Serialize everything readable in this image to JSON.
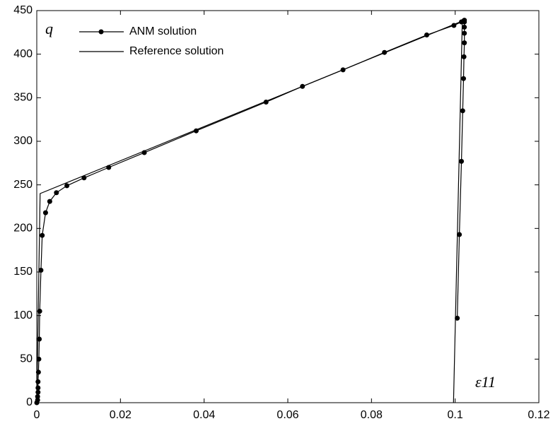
{
  "chart_data": {
    "type": "line",
    "ylabel": "q",
    "xlabel": "ε11",
    "xlim": [
      0,
      0.12
    ],
    "ylim": [
      0,
      450
    ],
    "xticks": [
      0,
      0.02,
      0.04,
      0.06,
      0.08,
      0.1,
      0.12
    ],
    "yticks": [
      0,
      50,
      100,
      150,
      200,
      250,
      300,
      350,
      400,
      450
    ],
    "legend": "top-left",
    "series": [
      {
        "name": "ANM solution",
        "color": "#000000",
        "marker": true,
        "x": [
          0,
          0.0002,
          0.0002,
          0.0003,
          0.0003,
          0.0003,
          0.0004,
          0.0005,
          0.0006,
          0.0007,
          0.001,
          0.0013,
          0.0021,
          0.0031,
          0.0047,
          0.0072,
          0.0113,
          0.0172,
          0.0257,
          0.0381,
          0.0548,
          0.0635,
          0.0732,
          0.0831,
          0.0932,
          0.0997,
          0.1015,
          0.102,
          0.1022,
          0.1022,
          0.1022,
          0.1022,
          0.1022,
          0.1021,
          0.102,
          0.1018,
          0.1015,
          0.101,
          0.1005
        ],
        "values": [
          0,
          3,
          7,
          12,
          17,
          24,
          35,
          50,
          73,
          105,
          152,
          192,
          218,
          231,
          241,
          249,
          258,
          270,
          287,
          312,
          345,
          363,
          382,
          402,
          422,
          433,
          437,
          438,
          439,
          437,
          431,
          424,
          413,
          397,
          372,
          335,
          277,
          193,
          97
        ]
      },
      {
        "name": "Reference solution",
        "color": "#000000",
        "marker": false,
        "x": [
          0,
          0.0008,
          0.1017,
          0.0996
        ],
        "values": [
          0,
          240,
          438,
          0
        ]
      }
    ]
  }
}
